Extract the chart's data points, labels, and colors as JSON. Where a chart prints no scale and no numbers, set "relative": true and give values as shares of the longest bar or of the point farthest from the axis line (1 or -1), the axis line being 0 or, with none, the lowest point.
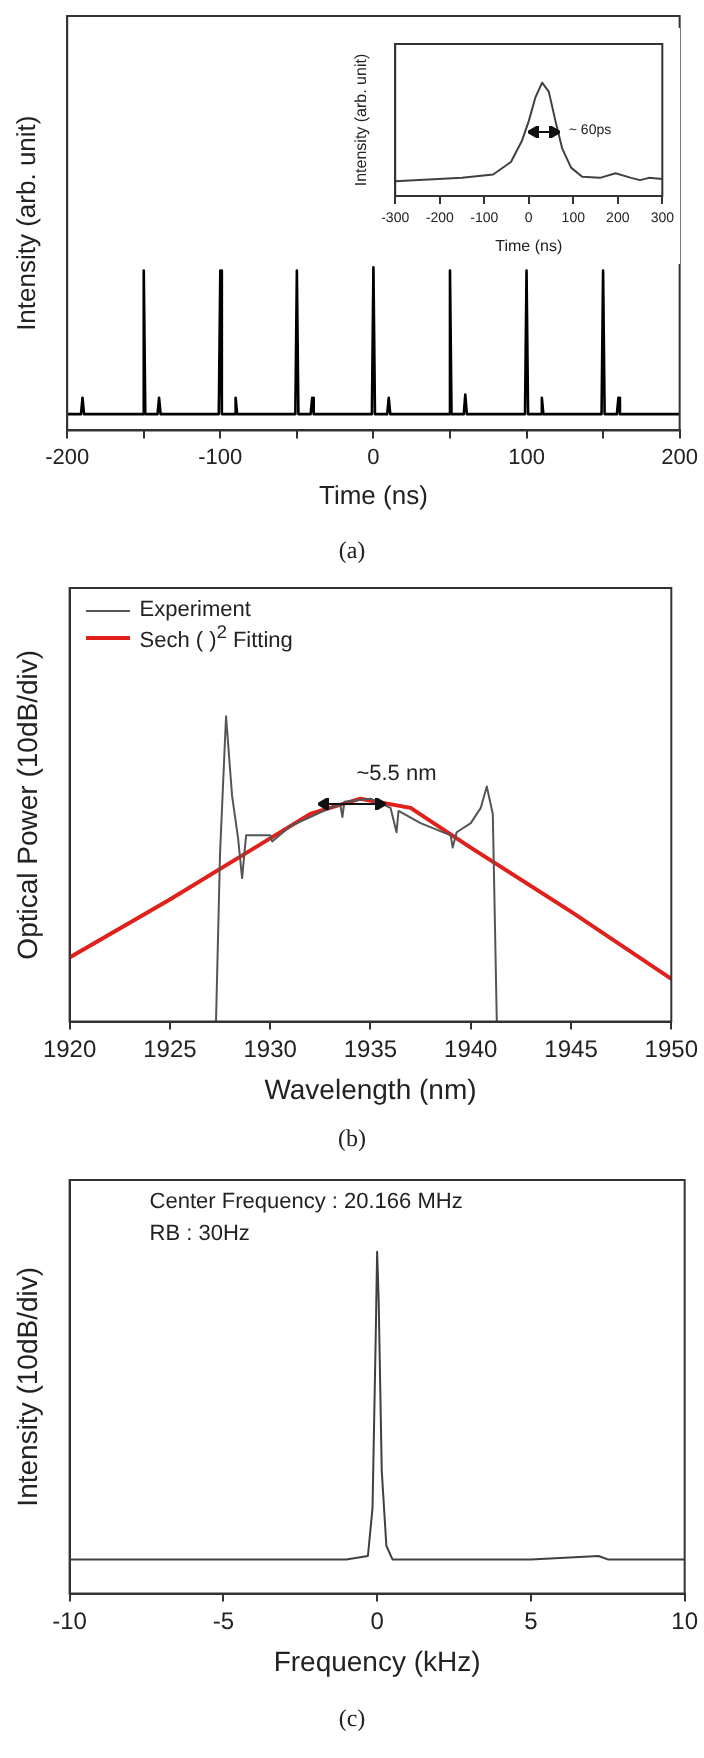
{
  "chart_data": [
    {
      "type": "line",
      "xlabel": "Time (ns)",
      "ylabel": "Intensity (arb. unit)",
      "relative": true,
      "grid": false,
      "legend": false,
      "xlim": [
        -200,
        200
      ],
      "xticks": [
        -200,
        {
          "value": -150,
          "label": null
        },
        -100,
        {
          "value": -50,
          "label": null
        },
        0,
        {
          "value": 50,
          "label": null
        },
        100,
        {
          "value": 150,
          "label": null
        },
        200
      ],
      "series": [
        {
          "color": "#000000",
          "x": [
            -200,
            -191,
            -190,
            -189,
            -151,
            -150,
            -149,
            -141,
            -140,
            -139,
            -101,
            -100,
            -99,
            -91,
            -90,
            -89,
            -51,
            -50,
            -49,
            -41,
            -40,
            -39,
            -1,
            0,
            1,
            9,
            10,
            11,
            49,
            50,
            51,
            59,
            60,
            61,
            99,
            100,
            101,
            109,
            110,
            111,
            149,
            150,
            151,
            159,
            160,
            161,
            200
          ],
          "values": [
            0.1,
            0.1,
            0.2,
            0.1,
            0.1,
            0.98,
            0.1,
            0.1,
            0.2,
            0.1,
            0.1,
            0.98,
            0.1,
            0.1,
            0.2,
            0.1,
            0.1,
            0.98,
            0.1,
            0.1,
            0.2,
            0.1,
            0.1,
            1,
            0.1,
            0.1,
            0.2,
            0.1,
            0.1,
            0.98,
            0.1,
            0.1,
            0.22,
            0.1,
            0.1,
            0.98,
            0.1,
            0.1,
            0.2,
            0.1,
            0.1,
            0.98,
            0.1,
            0.1,
            0.2,
            0.1,
            0.1
          ]
        }
      ],
      "annotations": [
        "(a)"
      ]
    },
    {
      "type": "line",
      "xlabel": "Time (ns)",
      "ylabel": "Intensity (arb. unit)",
      "relative": true,
      "grid": false,
      "legend": false,
      "xlim": [
        -300,
        300
      ],
      "xticks": [
        -300,
        -200,
        -100,
        0,
        100,
        200,
        300
      ],
      "series": [
        {
          "color": "#404040",
          "x": [
            -300,
            -150,
            -80,
            -40,
            -15,
            0,
            15,
            30,
            45,
            60,
            75,
            95,
            120,
            160,
            195,
            230,
            250,
            270,
            300
          ],
          "values": [
            0.13,
            0.16,
            0.19,
            0.3,
            0.49,
            0.66,
            0.87,
            1,
            0.92,
            0.66,
            0.42,
            0.25,
            0.17,
            0.16,
            0.2,
            0.16,
            0.14,
            0.16,
            0.15
          ]
        }
      ],
      "annotations": [
        "~ 60ps"
      ]
    },
    {
      "type": "line",
      "xlabel": "Wavelength (nm)",
      "ylabel": "Optical Power (10dB/div)",
      "relative": true,
      "grid": false,
      "legend": "top left",
      "xlim": [
        1920,
        1950
      ],
      "xticks": [
        1920,
        1925,
        1930,
        1935,
        1940,
        1945,
        1950
      ],
      "series": [
        {
          "name": "Experiment",
          "color": "#555555",
          "x": [
            1927.3,
            1927.5,
            1927.8,
            1928.1,
            1928.4,
            1928.6,
            1928.8,
            1930,
            1930.1,
            1931,
            1932,
            1933,
            1933.5,
            1933.6,
            1933.7,
            1935,
            1936,
            1936.3,
            1936.4,
            1937.5,
            1939,
            1939.1,
            1939.3,
            1940,
            1940.5,
            1940.8,
            1941.1,
            1941.3
          ],
          "values": [
            0,
            0.55,
            1,
            0.74,
            0.6,
            0.47,
            0.61,
            0.61,
            0.59,
            0.64,
            0.67,
            0.7,
            0.71,
            0.67,
            0.72,
            0.73,
            0.7,
            0.62,
            0.69,
            0.65,
            0.61,
            0.57,
            0.62,
            0.65,
            0.7,
            0.77,
            0.68,
            0
          ]
        },
        {
          "name": "Sech ( )$^{2}$ Fitting",
          "color": "#e0201b",
          "x": [
            1920,
            1925,
            1930,
            1932,
            1934.5,
            1937,
            1940,
            1945,
            1950
          ],
          "values": [
            0.21,
            0.4,
            0.6,
            0.68,
            0.73,
            0.7,
            0.57,
            0.36,
            0.14
          ]
        }
      ],
      "annotations": [
        {
          "text": "~5.5 nm",
          "x": 1934.1,
          "y": 0.71
        },
        "(b)"
      ]
    },
    {
      "type": "line",
      "xlabel": "Frequency (kHz)",
      "ylabel": "Intensity (10dB/div)",
      "relative": true,
      "grid": false,
      "legend": false,
      "xlim": [
        -10,
        10
      ],
      "xticks": [
        -10,
        -5,
        0,
        5,
        10
      ],
      "series": [
        {
          "color": "#404040",
          "x": [
            -10,
            -7.5,
            -5,
            -2.5,
            -1,
            -0.3,
            -0.15,
            -0.05,
            0,
            0.05,
            0.15,
            0.3,
            0.5,
            2.5,
            5,
            7.2,
            7.5,
            10
          ],
          "values": [
            0.1,
            0.1,
            0.1,
            0.1,
            0.1,
            0.11,
            0.25,
            0.73,
            1,
            0.86,
            0.36,
            0.14,
            0.1,
            0.1,
            0.1,
            0.11,
            0.1,
            0.1
          ]
        }
      ],
      "annotations": [
        "Center Frequency : 20.166 MHz",
        "RB : 30Hz",
        "(c)"
      ]
    }
  ]
}
